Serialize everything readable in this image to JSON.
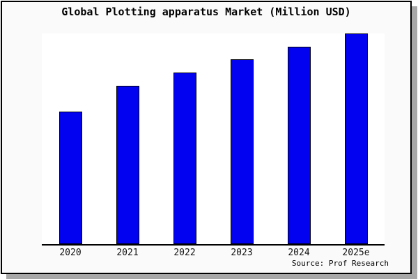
{
  "window": {
    "background": "#ffffff",
    "card_background": "#fafafa",
    "card_border_color": "#000000",
    "shadow_color": "#a8a8a8"
  },
  "title": "Global Plotting apparatus Market (Million USD)",
  "source_note": "Source: Prof Research",
  "chart_data": {
    "type": "bar",
    "title": "Global Plotting apparatus Market (Million USD)",
    "categories": [
      "2020",
      "2021",
      "2022",
      "2023",
      "2024",
      "2025e"
    ],
    "values": [
      100,
      120,
      130,
      140,
      150,
      160
    ],
    "value_note": "relative units estimated from bar heights; chart shows no y-axis or value labels",
    "xlabel": "",
    "ylabel": "",
    "ylim": [
      0,
      160
    ],
    "grid": false,
    "legend": false,
    "bar_color": "#0202f0",
    "bar_border_color": "#000000",
    "axis_color": "#000000",
    "plot_background": "#ffffff"
  }
}
